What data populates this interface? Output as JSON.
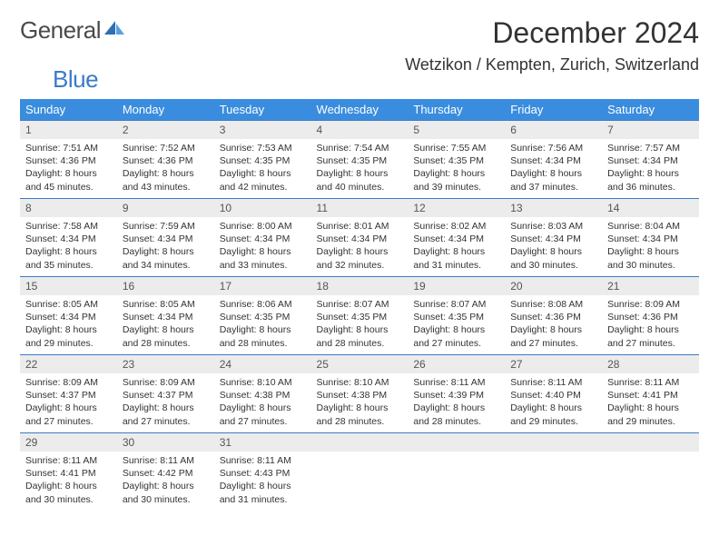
{
  "logo": {
    "word1": "General",
    "word2": "Blue"
  },
  "title": "December 2024",
  "location": "Wetzikon / Kempten, Zurich, Switzerland",
  "colors": {
    "header_bg": "#3a8dde",
    "header_text": "#ffffff",
    "rule": "#3a7bc8",
    "daynum_bg": "#ececec",
    "text": "#333333",
    "logo_gray": "#4a4a4a",
    "logo_blue": "#3a7bc8"
  },
  "weekdays": [
    "Sunday",
    "Monday",
    "Tuesday",
    "Wednesday",
    "Thursday",
    "Friday",
    "Saturday"
  ],
  "weeks": [
    [
      {
        "n": "1",
        "sr": "7:51 AM",
        "ss": "4:36 PM",
        "dh": "8",
        "dm": "45"
      },
      {
        "n": "2",
        "sr": "7:52 AM",
        "ss": "4:36 PM",
        "dh": "8",
        "dm": "43"
      },
      {
        "n": "3",
        "sr": "7:53 AM",
        "ss": "4:35 PM",
        "dh": "8",
        "dm": "42"
      },
      {
        "n": "4",
        "sr": "7:54 AM",
        "ss": "4:35 PM",
        "dh": "8",
        "dm": "40"
      },
      {
        "n": "5",
        "sr": "7:55 AM",
        "ss": "4:35 PM",
        "dh": "8",
        "dm": "39"
      },
      {
        "n": "6",
        "sr": "7:56 AM",
        "ss": "4:34 PM",
        "dh": "8",
        "dm": "37"
      },
      {
        "n": "7",
        "sr": "7:57 AM",
        "ss": "4:34 PM",
        "dh": "8",
        "dm": "36"
      }
    ],
    [
      {
        "n": "8",
        "sr": "7:58 AM",
        "ss": "4:34 PM",
        "dh": "8",
        "dm": "35"
      },
      {
        "n": "9",
        "sr": "7:59 AM",
        "ss": "4:34 PM",
        "dh": "8",
        "dm": "34"
      },
      {
        "n": "10",
        "sr": "8:00 AM",
        "ss": "4:34 PM",
        "dh": "8",
        "dm": "33"
      },
      {
        "n": "11",
        "sr": "8:01 AM",
        "ss": "4:34 PM",
        "dh": "8",
        "dm": "32"
      },
      {
        "n": "12",
        "sr": "8:02 AM",
        "ss": "4:34 PM",
        "dh": "8",
        "dm": "31"
      },
      {
        "n": "13",
        "sr": "8:03 AM",
        "ss": "4:34 PM",
        "dh": "8",
        "dm": "30"
      },
      {
        "n": "14",
        "sr": "8:04 AM",
        "ss": "4:34 PM",
        "dh": "8",
        "dm": "30"
      }
    ],
    [
      {
        "n": "15",
        "sr": "8:05 AM",
        "ss": "4:34 PM",
        "dh": "8",
        "dm": "29"
      },
      {
        "n": "16",
        "sr": "8:05 AM",
        "ss": "4:34 PM",
        "dh": "8",
        "dm": "28"
      },
      {
        "n": "17",
        "sr": "8:06 AM",
        "ss": "4:35 PM",
        "dh": "8",
        "dm": "28"
      },
      {
        "n": "18",
        "sr": "8:07 AM",
        "ss": "4:35 PM",
        "dh": "8",
        "dm": "28"
      },
      {
        "n": "19",
        "sr": "8:07 AM",
        "ss": "4:35 PM",
        "dh": "8",
        "dm": "27"
      },
      {
        "n": "20",
        "sr": "8:08 AM",
        "ss": "4:36 PM",
        "dh": "8",
        "dm": "27"
      },
      {
        "n": "21",
        "sr": "8:09 AM",
        "ss": "4:36 PM",
        "dh": "8",
        "dm": "27"
      }
    ],
    [
      {
        "n": "22",
        "sr": "8:09 AM",
        "ss": "4:37 PM",
        "dh": "8",
        "dm": "27"
      },
      {
        "n": "23",
        "sr": "8:09 AM",
        "ss": "4:37 PM",
        "dh": "8",
        "dm": "27"
      },
      {
        "n": "24",
        "sr": "8:10 AM",
        "ss": "4:38 PM",
        "dh": "8",
        "dm": "27"
      },
      {
        "n": "25",
        "sr": "8:10 AM",
        "ss": "4:38 PM",
        "dh": "8",
        "dm": "28"
      },
      {
        "n": "26",
        "sr": "8:11 AM",
        "ss": "4:39 PM",
        "dh": "8",
        "dm": "28"
      },
      {
        "n": "27",
        "sr": "8:11 AM",
        "ss": "4:40 PM",
        "dh": "8",
        "dm": "29"
      },
      {
        "n": "28",
        "sr": "8:11 AM",
        "ss": "4:41 PM",
        "dh": "8",
        "dm": "29"
      }
    ],
    [
      {
        "n": "29",
        "sr": "8:11 AM",
        "ss": "4:41 PM",
        "dh": "8",
        "dm": "30"
      },
      {
        "n": "30",
        "sr": "8:11 AM",
        "ss": "4:42 PM",
        "dh": "8",
        "dm": "30"
      },
      {
        "n": "31",
        "sr": "8:11 AM",
        "ss": "4:43 PM",
        "dh": "8",
        "dm": "31"
      },
      null,
      null,
      null,
      null
    ]
  ],
  "labels": {
    "sunrise": "Sunrise:",
    "sunset": "Sunset:",
    "daylight_prefix": "Daylight:",
    "hours_word": "hours",
    "and_word": "and",
    "minutes_word": "minutes."
  }
}
